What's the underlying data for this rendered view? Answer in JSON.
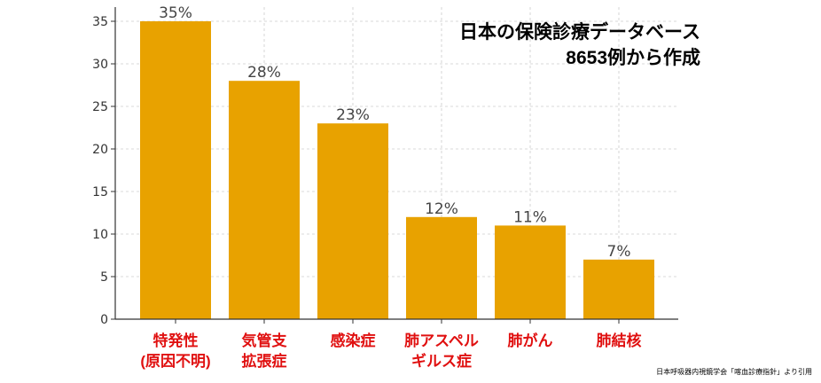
{
  "chart_data": {
    "type": "bar",
    "categories": [
      [
        "特発性",
        "(原因不明)"
      ],
      [
        "気管支",
        "拡張症"
      ],
      [
        "感染症"
      ],
      [
        "肺アスペル",
        "ギルス症"
      ],
      [
        "肺がん"
      ],
      [
        "肺結核"
      ]
    ],
    "values": [
      35,
      28,
      23,
      12,
      11,
      7
    ],
    "data_labels": [
      "35%",
      "28%",
      "23%",
      "12%",
      "11%",
      "7%"
    ],
    "ylim": [
      0,
      36
    ],
    "yticks": [
      0,
      5,
      10,
      15,
      20,
      25,
      30,
      35
    ],
    "grid": true,
    "bar_color": "#E8A200",
    "category_label_color": "#E01010"
  },
  "annotation": {
    "line1": "日本の保険診療データベース",
    "line2": "8653例から作成"
  },
  "source": "日本呼吸器内視鏡学会「喀血診療指針」より引用"
}
